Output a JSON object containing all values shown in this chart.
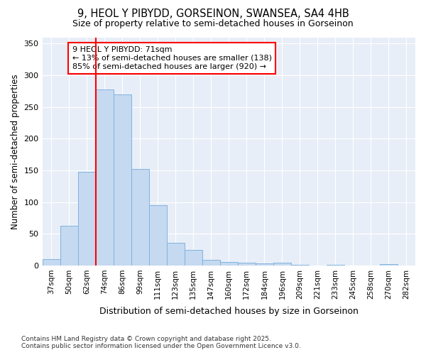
{
  "title_line1": "9, HEOL Y PIBYDD, GORSEINON, SWANSEA, SA4 4HB",
  "title_line2": "Size of property relative to semi-detached houses in Gorseinon",
  "xlabel": "Distribution of semi-detached houses by size in Gorseinon",
  "ylabel": "Number of semi-detached properties",
  "categories": [
    "37sqm",
    "50sqm",
    "62sqm",
    "74sqm",
    "86sqm",
    "99sqm",
    "111sqm",
    "123sqm",
    "135sqm",
    "147sqm",
    "160sqm",
    "172sqm",
    "184sqm",
    "196sqm",
    "209sqm",
    "221sqm",
    "233sqm",
    "245sqm",
    "258sqm",
    "270sqm",
    "282sqm"
  ],
  "values": [
    10,
    63,
    148,
    278,
    270,
    152,
    95,
    36,
    24,
    9,
    5,
    4,
    3,
    4,
    1,
    0,
    1,
    0,
    0,
    2,
    0
  ],
  "bar_color": "#c5d9f0",
  "bar_edge_color": "#7fb3e0",
  "background_color": "#e8eef7",
  "red_line_index": 3.0,
  "annotation_title": "9 HEOL Y PIBYDD: 71sqm",
  "annotation_line1": "← 13% of semi-detached houses are smaller (138)",
  "annotation_line2": "85% of semi-detached houses are larger (920) →",
  "footer_line1": "Contains HM Land Registry data © Crown copyright and database right 2025.",
  "footer_line2": "Contains public sector information licensed under the Open Government Licence v3.0.",
  "ylim": [
    0,
    360
  ],
  "yticks": [
    0,
    50,
    100,
    150,
    200,
    250,
    300,
    350
  ]
}
